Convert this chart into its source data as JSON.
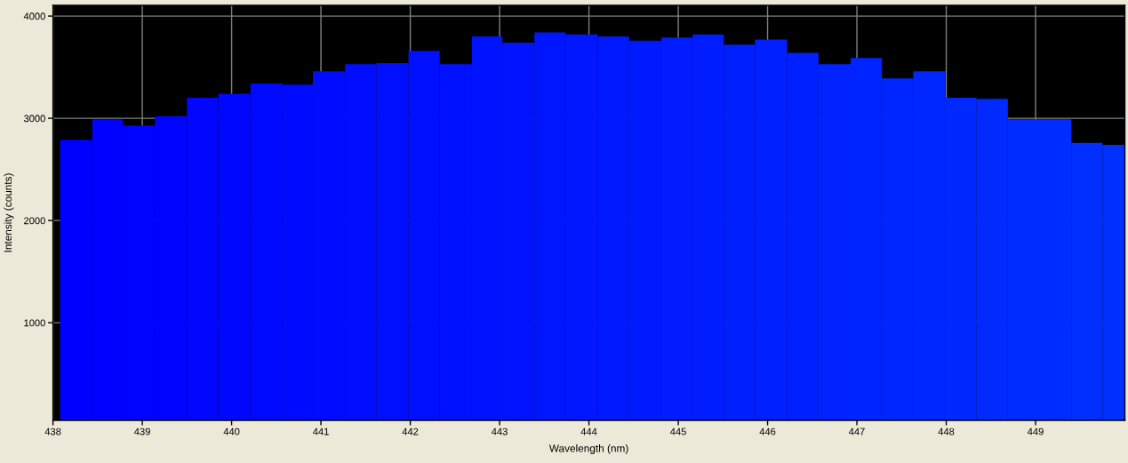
{
  "chart_data": {
    "type": "histogram",
    "xlabel": "Wavelength (nm)",
    "ylabel": "Intensity (counts)",
    "bins": [
      438.08,
      438.44,
      438.78,
      439.14,
      439.5,
      439.85,
      440.21,
      440.57,
      440.91,
      441.27,
      441.62,
      441.98,
      442.33,
      442.69,
      443.03,
      443.39,
      443.74,
      444.1,
      444.45,
      444.81,
      445.16,
      445.51,
      445.86,
      446.22,
      446.57,
      446.93,
      447.28,
      447.63,
      447.99,
      448.34,
      448.69,
      449.05,
      449.4,
      449.75,
      450.0
    ],
    "values": [
      2790,
      2990,
      2930,
      3020,
      3200,
      3240,
      3340,
      3330,
      3460,
      3530,
      3540,
      3660,
      3530,
      3800,
      3740,
      3840,
      3820,
      3800,
      3760,
      3790,
      3820,
      3720,
      3770,
      3640,
      3530,
      3590,
      3390,
      3460,
      3200,
      3190,
      2990,
      2990,
      2760,
      2740
    ],
    "colors": [
      "#0000ff",
      "#0001ff",
      "#0003ff",
      "#0004ff",
      "#0006ff",
      "#0007ff",
      "#0009ff",
      "#000aff",
      "#000cff",
      "#000dff",
      "#000fff",
      "#0010ff",
      "#0011ff",
      "#0013ff",
      "#0014ff",
      "#0016ff",
      "#0017ff",
      "#0019ff",
      "#001aff",
      "#001cff",
      "#001dff",
      "#001fff",
      "#0020ff",
      "#0021ff",
      "#0023ff",
      "#0024ff",
      "#0026ff",
      "#0027ff",
      "#0029ff",
      "#002aff",
      "#002cff",
      "#002dff",
      "#002fff",
      "#0030ff"
    ],
    "xlim": [
      438,
      450
    ],
    "ylim": [
      45,
      4105
    ],
    "xticks": [
      438,
      439,
      440,
      441,
      442,
      443,
      444,
      445,
      446,
      447,
      448,
      449
    ],
    "yticks": [
      1000,
      2000,
      3000,
      4000
    ],
    "grid": true
  }
}
